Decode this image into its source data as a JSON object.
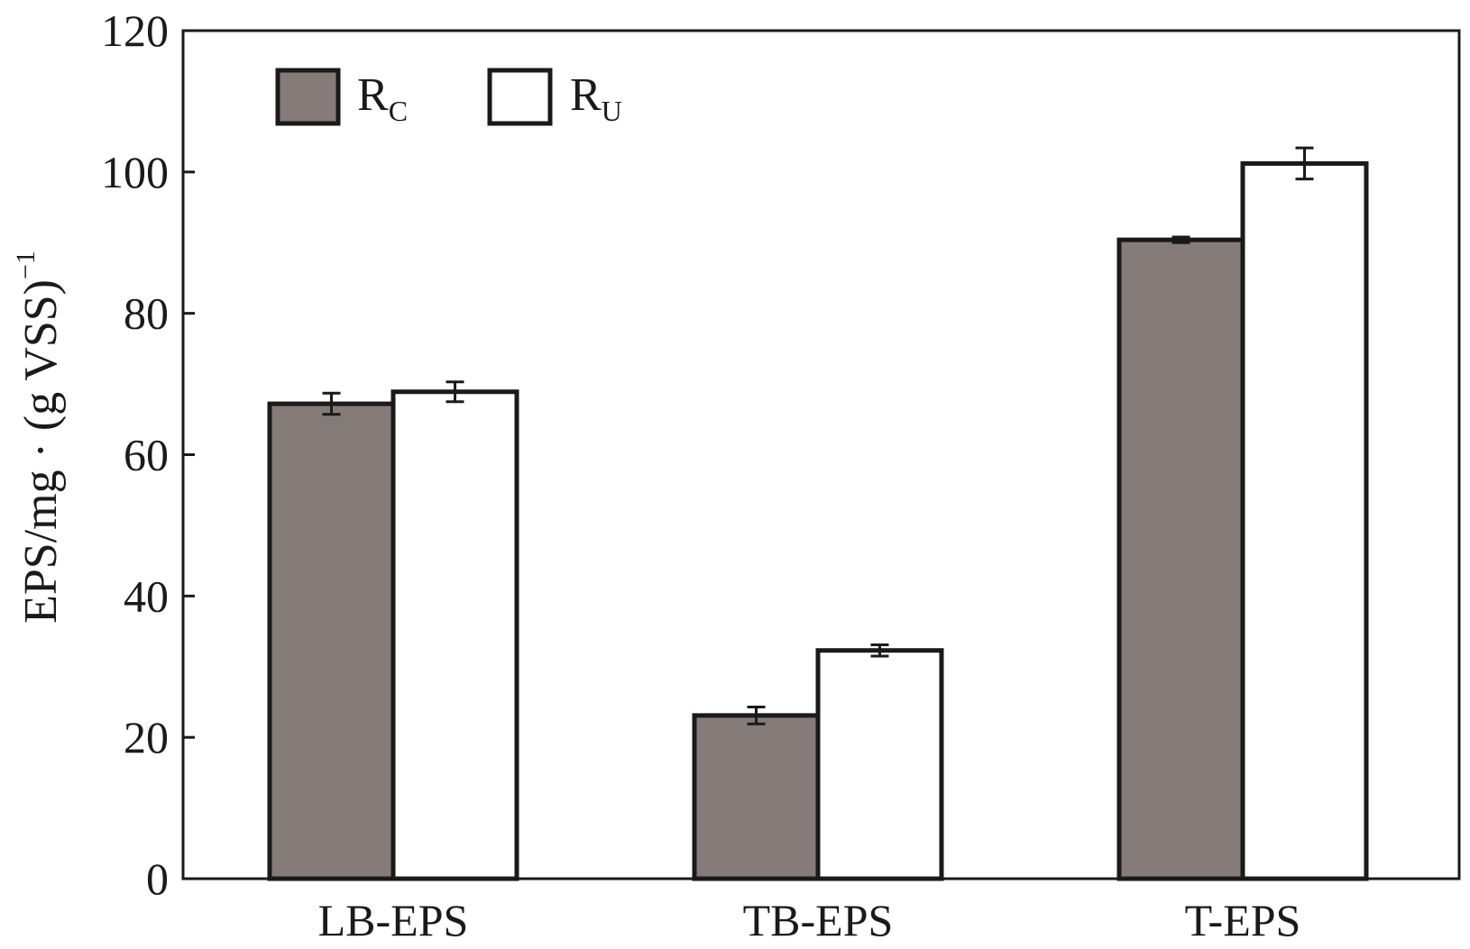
{
  "chart_data": {
    "type": "bar",
    "title": "",
    "xlabel": "",
    "ylabel": {
      "main": "EPS/mg · (g VSS)",
      "superscript": "−1"
    },
    "ylim": [
      0,
      120
    ],
    "yticks": [
      0,
      20,
      40,
      60,
      80,
      100,
      120
    ],
    "ytick_labels": [
      "0",
      "20",
      "40",
      "60",
      "80",
      "100",
      "120"
    ],
    "grid": false,
    "legend_position": "top-left",
    "categories": [
      "LB-EPS",
      "TB-EPS",
      "T-EPS"
    ],
    "series": [
      {
        "name": "R",
        "subscript": "C",
        "color": "#857b79",
        "values": [
          67.2,
          23.1,
          90.4
        ],
        "errors": [
          1.5,
          1.2,
          0.4
        ]
      },
      {
        "name": "R",
        "subscript": "U",
        "color": "#ffffff",
        "values": [
          68.9,
          32.3,
          101.2
        ],
        "errors": [
          1.4,
          0.8,
          2.2
        ]
      }
    ],
    "edge_color": "#1a1a1a"
  }
}
